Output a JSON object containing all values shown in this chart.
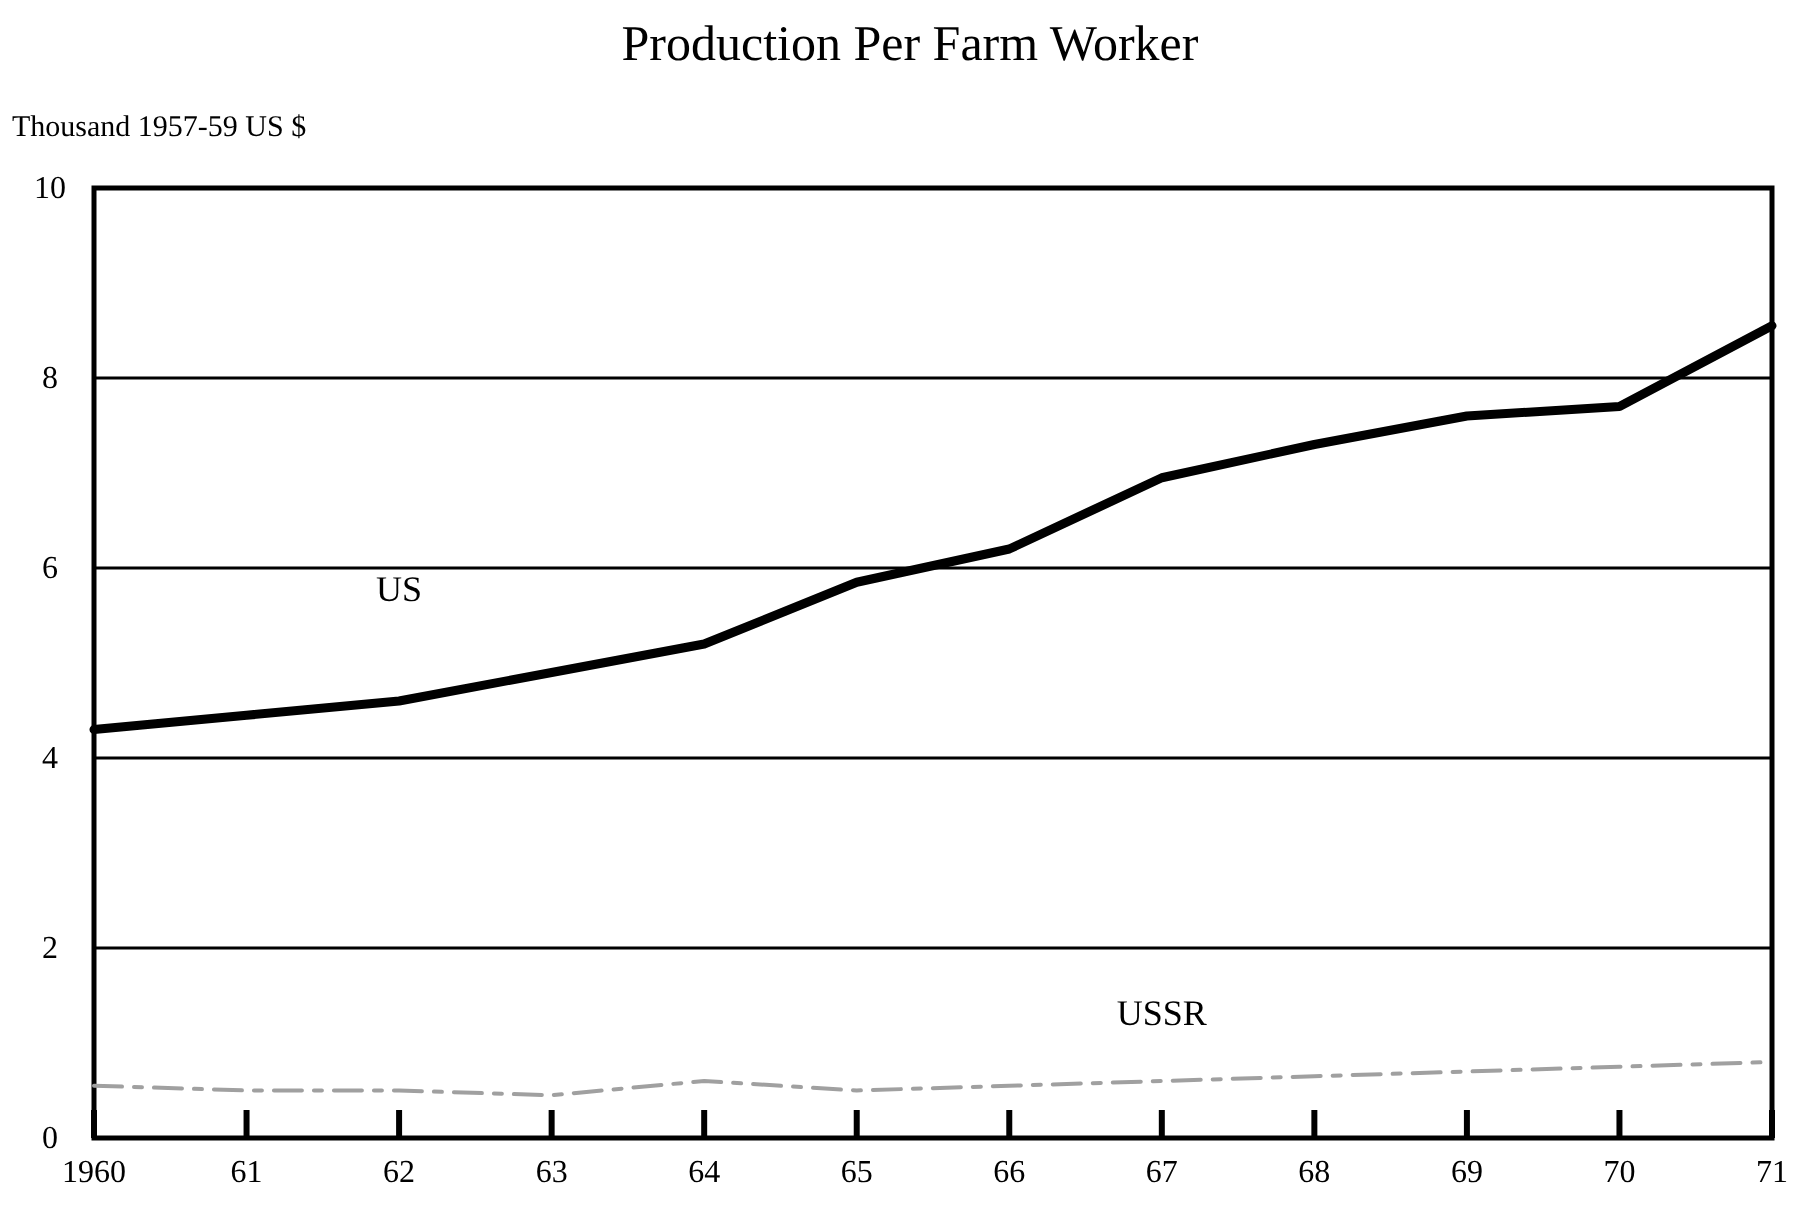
{
  "chart_data": {
    "type": "line",
    "title": "Production Per Farm Worker",
    "ylabel": "Thousand 1957-59 US $",
    "x": [
      1960,
      1961,
      1962,
      1963,
      1964,
      1965,
      1966,
      1967,
      1968,
      1969,
      1970,
      1971
    ],
    "xlim": [
      1960,
      1971
    ],
    "xticks": [
      1960,
      {
        "value": 1961,
        "label": "61"
      },
      {
        "value": 1962,
        "label": "62"
      },
      {
        "value": 1963,
        "label": "63"
      },
      {
        "value": 1964,
        "label": "64"
      },
      {
        "value": 1965,
        "label": "65"
      },
      {
        "value": 1966,
        "label": "66"
      },
      {
        "value": 1967,
        "label": "67"
      },
      {
        "value": 1968,
        "label": "68"
      },
      {
        "value": 1969,
        "label": "69"
      },
      {
        "value": 1970,
        "label": "70"
      },
      {
        "value": 1971,
        "label": "71"
      }
    ],
    "ylim": [
      0,
      10
    ],
    "yticks": [
      0,
      2,
      4,
      6,
      8,
      10
    ],
    "grid": "y",
    "series": [
      {
        "name": "US",
        "color": "#000000",
        "line_style": "solid",
        "values": [
          4.3,
          4.45,
          4.6,
          4.9,
          5.2,
          5.85,
          6.2,
          6.95,
          7.3,
          7.6,
          7.7,
          8.55
        ]
      },
      {
        "name": "USSR",
        "color": "#a0a0a0",
        "line_style": "dashed",
        "values": [
          0.55,
          0.5,
          0.5,
          0.45,
          0.6,
          0.5,
          0.55,
          0.6,
          0.65,
          0.7,
          0.75,
          0.8
        ]
      }
    ]
  }
}
